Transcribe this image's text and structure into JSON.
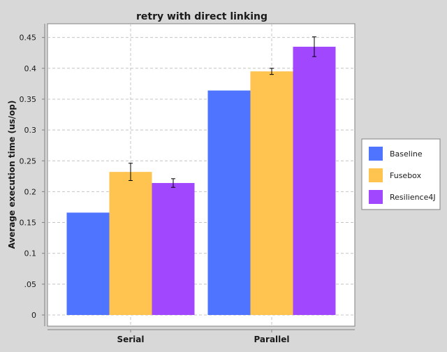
{
  "chart_data": {
    "type": "bar",
    "title": "retry with direct linking",
    "xlabel": "",
    "ylabel": "Average execution time (us/op)",
    "categories": [
      "Serial",
      "Parallel"
    ],
    "ylim": [
      0,
      0.47
    ],
    "yticks": [
      0,
      0.05,
      0.1,
      0.15,
      0.2,
      0.25,
      0.3,
      0.35,
      0.4,
      0.45
    ],
    "ytick_labels": [
      "0",
      ".05",
      "0.1",
      "0.15",
      "0.2",
      "0.25",
      "0.3",
      "0.35",
      "0.4",
      "0.45"
    ],
    "grid": true,
    "legend_position": "right",
    "series": [
      {
        "name": "Baseline",
        "color": "#4f74ff",
        "values": [
          0.166,
          0.364
        ],
        "errors": [
          0,
          0
        ]
      },
      {
        "name": "Fusebox",
        "color": "#ffc34f",
        "values": [
          0.232,
          0.395
        ],
        "errors": [
          0.014,
          0.005
        ]
      },
      {
        "name": "Resilience4J",
        "color": "#a148ff",
        "values": [
          0.214,
          0.435
        ],
        "errors": [
          0.007,
          0.016
        ]
      }
    ]
  }
}
